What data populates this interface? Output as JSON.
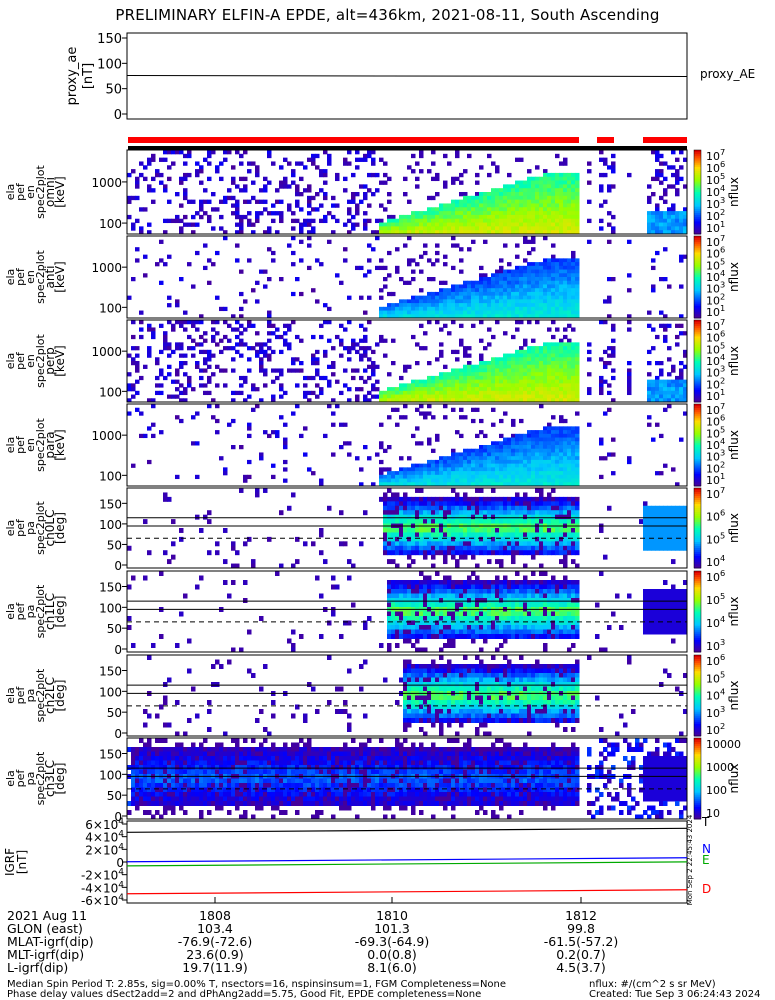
{
  "title": "PRELIMINARY ELFIN-A EPDE, alt=436km, 2021-08-11, South Ascending",
  "chart_data": {
    "type": "heatmap",
    "x_tick_labels": [
      "1808",
      "1810",
      "1812"
    ],
    "panels": [
      {
        "name": "proxy_ae",
        "ylabel": [
          "proxy_ae",
          "[nT]"
        ],
        "yticks": [
          "150",
          "100",
          "50",
          "0"
        ],
        "ylim": [
          0,
          150
        ],
        "series": [
          {
            "name": "proxy_AE",
            "value": 76
          }
        ]
      },
      {
        "name": "spectrogram",
        "ylabel": [
          "ela",
          "pef",
          "en",
          "spec2plot",
          "omni",
          "[keV]"
        ],
        "yticks": [
          "1000",
          "100"
        ],
        "cbar": "nflux",
        "cbar_ticks": [
          "10^7",
          "10^6",
          "10^5",
          "10^4",
          "10^3",
          "10^2",
          "10^1"
        ]
      },
      {
        "name": "spectrogram",
        "ylabel": [
          "ela",
          "pef",
          "en",
          "spec2plot",
          "anti",
          "[keV]"
        ],
        "yticks": [
          "1000",
          "100"
        ],
        "cbar": "nflux",
        "cbar_ticks": [
          "10^7",
          "10^6",
          "10^5",
          "10^4",
          "10^3",
          "10^2",
          "10^1"
        ]
      },
      {
        "name": "spectrogram",
        "ylabel": [
          "ela",
          "pef",
          "en",
          "spec2plot",
          "perp",
          "[keV]"
        ],
        "yticks": [
          "1000",
          "100"
        ],
        "cbar": "nflux",
        "cbar_ticks": [
          "10^7",
          "10^6",
          "10^5",
          "10^4",
          "10^3",
          "10^2",
          "10^1"
        ]
      },
      {
        "name": "spectrogram",
        "ylabel": [
          "ela",
          "pef",
          "en",
          "spec2plot",
          "para",
          "[keV]"
        ],
        "yticks": [
          "1000",
          "100"
        ],
        "cbar": "nflux",
        "cbar_ticks": [
          "10^7",
          "10^6",
          "10^5",
          "10^4",
          "10^3",
          "10^2",
          "10^1"
        ]
      },
      {
        "name": "pitch-angle",
        "ylabel": [
          "ela",
          "pef",
          "pa",
          "spec2plot",
          "ch0LC",
          "[deg]"
        ],
        "yticks": [
          "150",
          "100",
          "50",
          "0"
        ],
        "cbar": "nflux",
        "cbar_ticks": [
          "10^7",
          "10^6",
          "10^5",
          "10^4"
        ]
      },
      {
        "name": "pitch-angle",
        "ylabel": [
          "ela",
          "pef",
          "pa",
          "spec2plot",
          "ch1LC",
          "[deg]"
        ],
        "yticks": [
          "150",
          "100",
          "50",
          "0"
        ],
        "cbar": "nflux",
        "cbar_ticks": [
          "10^6",
          "10^5",
          "10^4",
          "10^3"
        ]
      },
      {
        "name": "pitch-angle",
        "ylabel": [
          "ela",
          "pef",
          "pa",
          "spec2plot",
          "ch2LC",
          "[deg]"
        ],
        "yticks": [
          "150",
          "100",
          "50",
          "0"
        ],
        "cbar": "nflux",
        "cbar_ticks": [
          "10^6",
          "10^5",
          "10^4",
          "10^3",
          "10^2"
        ]
      },
      {
        "name": "pitch-angle",
        "ylabel": [
          "ela",
          "pef",
          "pa",
          "spec2plot",
          "ch3LC",
          "[deg]"
        ],
        "yticks": [
          "150",
          "100",
          "50",
          "0"
        ],
        "cbar": "nflux",
        "cbar_ticks": [
          "10000",
          "1000",
          "100",
          "10"
        ]
      },
      {
        "name": "igrf",
        "ylabel": [
          "IGRF",
          "[nT]"
        ],
        "yticks": [
          "6×10^4",
          "4×10^4",
          "2×10^4",
          "0",
          "-2×10^4",
          "-4×10^4",
          "-6×10^4"
        ],
        "ylim": [
          -60000,
          60000
        ],
        "series": [
          {
            "name": "T",
            "value": 50000,
            "color": "#000000"
          },
          {
            "name": "N",
            "value": 3500,
            "color": "#0000ff"
          },
          {
            "name": "E",
            "value": -3000,
            "color": "#00aa00"
          },
          {
            "name": "D",
            "value": -47000,
            "color": "#ff0000"
          }
        ]
      }
    ],
    "side_text": "Mon Sep  2 22:45:43 2024"
  },
  "info": {
    "rows": [
      {
        "label": "2021 Aug 11",
        "vals": [
          "1808",
          "1810",
          "1812"
        ]
      },
      {
        "label": "GLON (east)",
        "vals": [
          "103.4",
          "101.3",
          "99.8"
        ]
      },
      {
        "label": "MLAT-igrf(dip)",
        "vals": [
          "-76.9(-72.6)",
          "-69.3(-64.9)",
          "-61.5(-57.2)"
        ]
      },
      {
        "label": "MLT-igrf(dip)",
        "vals": [
          "23.6(0.9)",
          "0.0(0.8)",
          "0.2(0.7)"
        ]
      },
      {
        "label": "L-igrf(dip)",
        "vals": [
          "19.7(11.9)",
          "8.1(6.0)",
          "4.5(3.7)"
        ]
      }
    ],
    "footer_left_1": "Median Spin Period T: 2.85s, sig=0.00% T, nsectors=16, nspinsinsum=1, FGM Completeness=None",
    "footer_left_2": "Phase delay values dSect2add=2 and dPhAng2add=5.75, Good Fit, EPDE completeness=None",
    "footer_right_1": "nflux: #/(cm^2 s sr MeV)",
    "footer_right_2": "Created: Tue Sep  3 06:24:43 2024"
  },
  "colors": {
    "red_bar": "#ff0000",
    "black_bar": "#000000",
    "T": "#000000",
    "N": "#0000ff",
    "E": "#00aa00",
    "D": "#ff0000"
  }
}
